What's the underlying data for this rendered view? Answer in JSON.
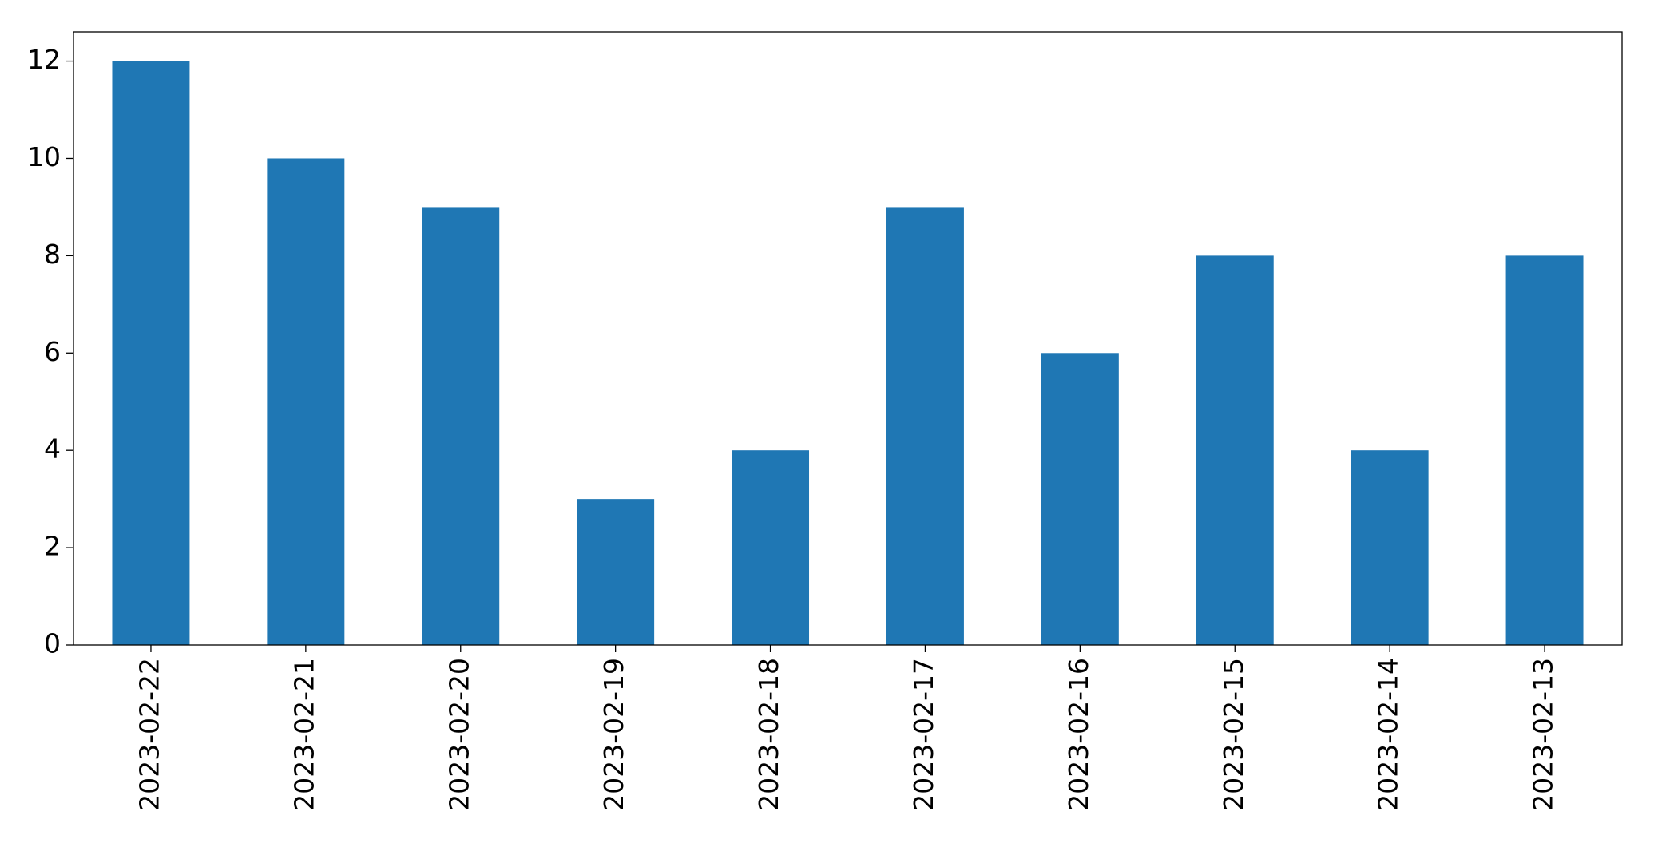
{
  "chart_data": {
    "type": "bar",
    "categories": [
      "2023-02-22",
      "2023-02-21",
      "2023-02-20",
      "2023-02-19",
      "2023-02-18",
      "2023-02-17",
      "2023-02-16",
      "2023-02-15",
      "2023-02-14",
      "2023-02-13"
    ],
    "values": [
      12,
      10,
      9,
      3,
      4,
      9,
      6,
      8,
      4,
      8
    ],
    "color": "#1f77b4",
    "ylim": [
      0,
      12.6
    ],
    "yticks": [
      0,
      2,
      4,
      6,
      8,
      10,
      12
    ],
    "grid": false
  }
}
